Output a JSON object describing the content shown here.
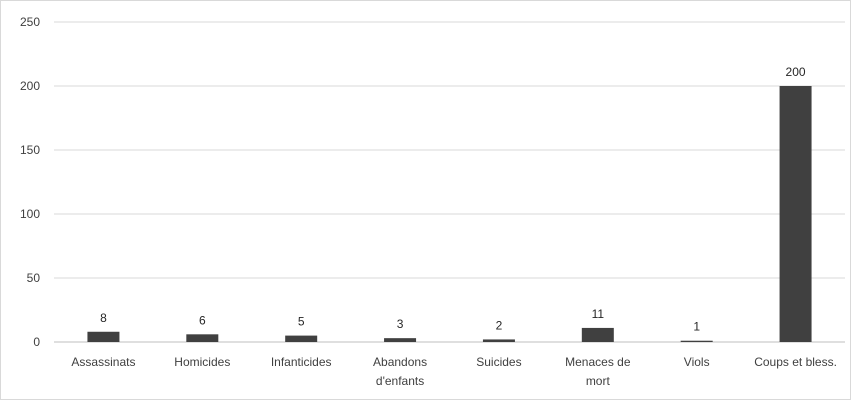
{
  "chart_data": {
    "type": "bar",
    "title": "",
    "xlabel": "",
    "ylabel": "",
    "categories": [
      [
        "Assassinats"
      ],
      [
        "Homicides"
      ],
      [
        "Infanticides"
      ],
      [
        "Abandons",
        "d'enfants"
      ],
      [
        "Suicides"
      ],
      [
        "Menaces de",
        "mort"
      ],
      [
        "Viols"
      ],
      [
        "Coups et bless."
      ]
    ],
    "values": [
      8,
      6,
      5,
      3,
      2,
      11,
      1,
      200
    ],
    "data_labels": [
      "8",
      "6",
      "5",
      "3",
      "2",
      "11",
      "1",
      "200"
    ],
    "ylim": [
      0,
      250
    ],
    "yticks": [
      "0",
      "50",
      "100",
      "150",
      "200",
      "250"
    ],
    "grid": true,
    "legend": "none",
    "colors": {
      "bar": "#404040",
      "grid": "#d9d9d9",
      "axis": "#bfbfbf"
    }
  }
}
